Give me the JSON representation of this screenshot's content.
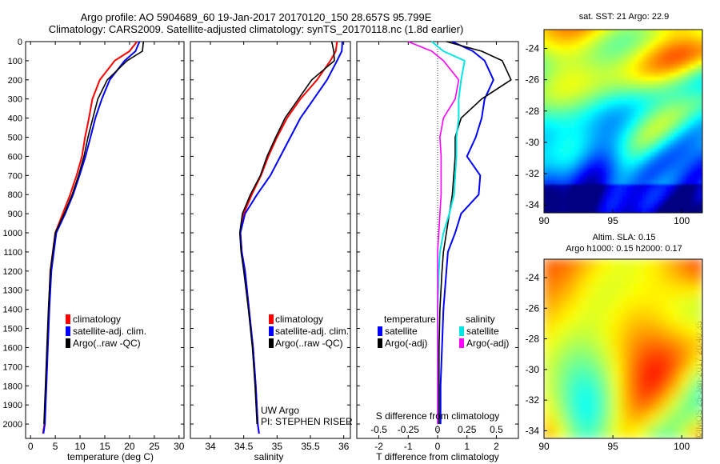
{
  "title_line1": "Argo profile: AO 5904689_60 19-Jan-2017 20170120_150 28.657S 95.799E",
  "title_line2": "Climatology: CARS2009. Satellite-adjusted climatology: synTS_20170118.nc (1.8d earlier)",
  "colors": {
    "climatology": "#ff0000",
    "satellite": "#0000ff",
    "argo": "#000000",
    "salinity_sat": "#00e5e5",
    "salinity_argo": "#ff00ff"
  },
  "panel1": {
    "xlabel": "temperature (deg C)",
    "legend": [
      "climatology",
      "satellite-adj. clim.",
      "Argo(..raw -QC)"
    ]
  },
  "panel2": {
    "xlabel": "salinity",
    "legend": [
      "climatology",
      "satellite-adj. clim.",
      "Argo(..raw -QC)"
    ],
    "note1": "UW Argo",
    "note2": "PI: STEPHEN RISER"
  },
  "panel3": {
    "xlabel": "T difference from climatology",
    "top_axis_label": "S difference from climatology",
    "leg_t_title": "temperature",
    "leg_s_title": "salinity",
    "leg_t": [
      "satellite",
      "Argo(-adj)"
    ],
    "leg_s": [
      "satellite",
      "Argo(-adj)"
    ]
  },
  "map1_title": "sat. SST: 21 Argo: 22.9",
  "map2_title1": "Altim. SLA: 0.15",
  "map2_title2": "Argo h1000: 0.15 h2000: 0.17",
  "credit": "©IMOS 25-Jan-2017 20:40:35",
  "chart_data": [
    {
      "type": "line",
      "title": "",
      "xlabel": "temperature (deg C)",
      "ylabel": "",
      "xlim": [
        -1,
        31
      ],
      "ylim": [
        2075,
        0
      ],
      "xticks": [
        "0",
        "5",
        "10",
        "15",
        "20",
        "25",
        "30"
      ],
      "yticks": [
        "0",
        "100",
        "200",
        "300",
        "400",
        "500",
        "600",
        "700",
        "800",
        "900",
        "1000",
        "1100",
        "1200",
        "1300",
        "1400",
        "1500",
        "1600",
        "1700",
        "1800",
        "1900",
        "2000"
      ],
      "series": [
        {
          "name": "climatology",
          "color": "#ff0000",
          "x": [
            21.5,
            20,
            17,
            14,
            12.5,
            11.8,
            11,
            10.4,
            9.3,
            8,
            6.5,
            5,
            4.5,
            4,
            3.7,
            3.4,
            3.1,
            2.8,
            2.5
          ],
          "y": [
            0,
            50,
            100,
            200,
            300,
            400,
            500,
            600,
            700,
            800,
            900,
            1000,
            1100,
            1200,
            1400,
            1600,
            1800,
            2000,
            2050
          ]
        },
        {
          "name": "satellite-adj. clim.",
          "color": "#0000ff",
          "x": [
            22,
            21.2,
            19,
            16,
            14.4,
            13.1,
            12.1,
            11.1,
            9.9,
            8.6,
            7,
            5.2,
            4.7,
            4.2,
            3.8,
            3.5,
            3.2,
            2.9,
            2.6
          ],
          "y": [
            0,
            50,
            100,
            200,
            300,
            400,
            500,
            600,
            700,
            800,
            900,
            1000,
            1100,
            1200,
            1400,
            1600,
            1800,
            2000,
            2050
          ]
        },
        {
          "name": "Argo(..raw -QC)",
          "color": "#000000",
          "x": [
            22.8,
            22.6,
            19.5,
            15.5,
            13.6,
            12.6,
            11.6,
            10.8,
            9.7,
            8.4,
            6.8,
            5,
            4.5,
            4,
            3.6,
            3.3,
            3,
            2.7
          ],
          "y": [
            0,
            50,
            100,
            200,
            300,
            400,
            500,
            600,
            700,
            800,
            900,
            1000,
            1100,
            1200,
            1400,
            1600,
            1800,
            2000
          ]
        }
      ]
    },
    {
      "type": "line",
      "title": "",
      "xlabel": "salinity",
      "ylabel": "",
      "xlim": [
        33.7,
        36.1
      ],
      "ylim": [
        2075,
        0
      ],
      "xticks": [
        "34",
        "34.5",
        "35",
        "35.5",
        "36"
      ],
      "series": [
        {
          "name": "climatology",
          "color": "#ff0000",
          "x": [
            35.9,
            35.88,
            35.8,
            35.6,
            35.35,
            35.15,
            35.0,
            34.87,
            34.76,
            34.62,
            34.5,
            34.45,
            34.47,
            34.52,
            34.58,
            34.64,
            34.68,
            34.71,
            34.73
          ],
          "y": [
            0,
            50,
            100,
            200,
            300,
            400,
            500,
            600,
            700,
            800,
            900,
            1000,
            1100,
            1200,
            1400,
            1600,
            1800,
            2000,
            2050
          ]
        },
        {
          "name": "satellite-adj. clim.",
          "color": "#0000ff",
          "x": [
            35.98,
            35.97,
            35.9,
            35.75,
            35.55,
            35.35,
            35.2,
            35.05,
            34.9,
            34.7,
            34.52,
            34.45,
            34.47,
            34.52,
            34.58,
            34.64,
            34.68,
            34.71,
            34.73
          ],
          "y": [
            0,
            50,
            100,
            200,
            300,
            400,
            500,
            600,
            700,
            800,
            900,
            1000,
            1100,
            1200,
            1400,
            1600,
            1800,
            2000,
            2050
          ]
        },
        {
          "name": "Argo(..raw -QC)",
          "color": "#000000",
          "x": [
            35.82,
            35.85,
            35.86,
            35.52,
            35.32,
            35.12,
            34.98,
            34.85,
            34.75,
            34.6,
            34.48,
            34.44,
            34.46,
            34.5,
            34.57,
            34.63,
            34.67,
            34.7
          ],
          "y": [
            0,
            50,
            100,
            200,
            300,
            400,
            500,
            600,
            700,
            800,
            900,
            1000,
            1100,
            1200,
            1400,
            1600,
            1800,
            2000
          ]
        }
      ]
    },
    {
      "type": "line",
      "title": "",
      "xlabel": "T difference from climatology",
      "x2label": "S difference from climatology",
      "ylabel": "",
      "xlim": [
        -2.75,
        2.75
      ],
      "ylim": [
        2075,
        0
      ],
      "xticks": [
        "-2",
        "-1",
        "0",
        "1",
        "2"
      ],
      "x2ticks": [
        "-0.5",
        "-0.25",
        "0",
        "0.25",
        "0.5"
      ],
      "series": [
        {
          "name": "temperature satellite",
          "color": "#0000ff",
          "x": [
            0.5,
            1.2,
            1.6,
            1.9,
            1.6,
            1.5,
            1.3,
            1.0,
            1.45,
            1.4,
            0.8,
            0.6,
            0.35,
            0.3,
            0.2,
            0.15,
            0.1,
            0.1
          ],
          "y": [
            0,
            50,
            100,
            200,
            300,
            400,
            500,
            600,
            700,
            800,
            900,
            1000,
            1100,
            1200,
            1400,
            1600,
            1800,
            2000
          ]
        },
        {
          "name": "temperature Argo(-adj)",
          "color": "#000000",
          "x": [
            0.3,
            1.5,
            2.2,
            2.5,
            1.5,
            0.8,
            0.6,
            0.6,
            0.55,
            0.5,
            0.4,
            0.3,
            0.2,
            0.15,
            0.08,
            0.05,
            0.05,
            0.05
          ],
          "y": [
            0,
            50,
            100,
            200,
            300,
            400,
            500,
            600,
            700,
            800,
            900,
            1000,
            1100,
            1200,
            1400,
            1600,
            1800,
            2000
          ]
        },
        {
          "name": "salinity satellite",
          "color": "#00e5e5",
          "x": [
            -0.05,
            0.05,
            0.23,
            0.2,
            0.18,
            0.18,
            0.16,
            0.16,
            0.15,
            0.14,
            0.1,
            0.05,
            0.02,
            0.01,
            0.0,
            0.0,
            0.0,
            0.0
          ],
          "y": [
            0,
            50,
            100,
            200,
            300,
            400,
            500,
            600,
            700,
            800,
            900,
            1000,
            1100,
            1200,
            1400,
            1600,
            1800,
            2000
          ]
        },
        {
          "name": "salinity Argo(-adj)",
          "color": "#ff00ff",
          "x": [
            -0.25,
            -0.05,
            0.05,
            0.18,
            0.15,
            0.05,
            0.02,
            0.03,
            0.03,
            0.03,
            0.02,
            0.01,
            0.0,
            0.0,
            0.0,
            0.0,
            0.0,
            0.0
          ],
          "y": [
            0,
            50,
            100,
            200,
            300,
            400,
            500,
            600,
            700,
            800,
            900,
            1000,
            1100,
            1200,
            1400,
            1600,
            1800,
            2000
          ]
        }
      ]
    },
    {
      "type": "heatmap",
      "title": "sat. SST: 21 Argo: 22.9",
      "xlim": [
        90,
        101.5
      ],
      "ylim": [
        -34.5,
        -22.8
      ],
      "xticks": [
        "90",
        "95",
        "100"
      ],
      "yticks": [
        "-24",
        "-26",
        "-28",
        "-30",
        "-32",
        "-34"
      ],
      "colormap": "jet"
    },
    {
      "type": "heatmap",
      "title": "Altim. SLA: 0.15 / Argo h1000: 0.15 h2000: 0.17",
      "xlim": [
        90,
        101.5
      ],
      "ylim": [
        -34.5,
        -22.8
      ],
      "xticks": [
        "90",
        "95",
        "100"
      ],
      "yticks": [
        "-24",
        "-26",
        "-28",
        "-30",
        "-32",
        "-34"
      ],
      "colormap": "jet"
    }
  ]
}
